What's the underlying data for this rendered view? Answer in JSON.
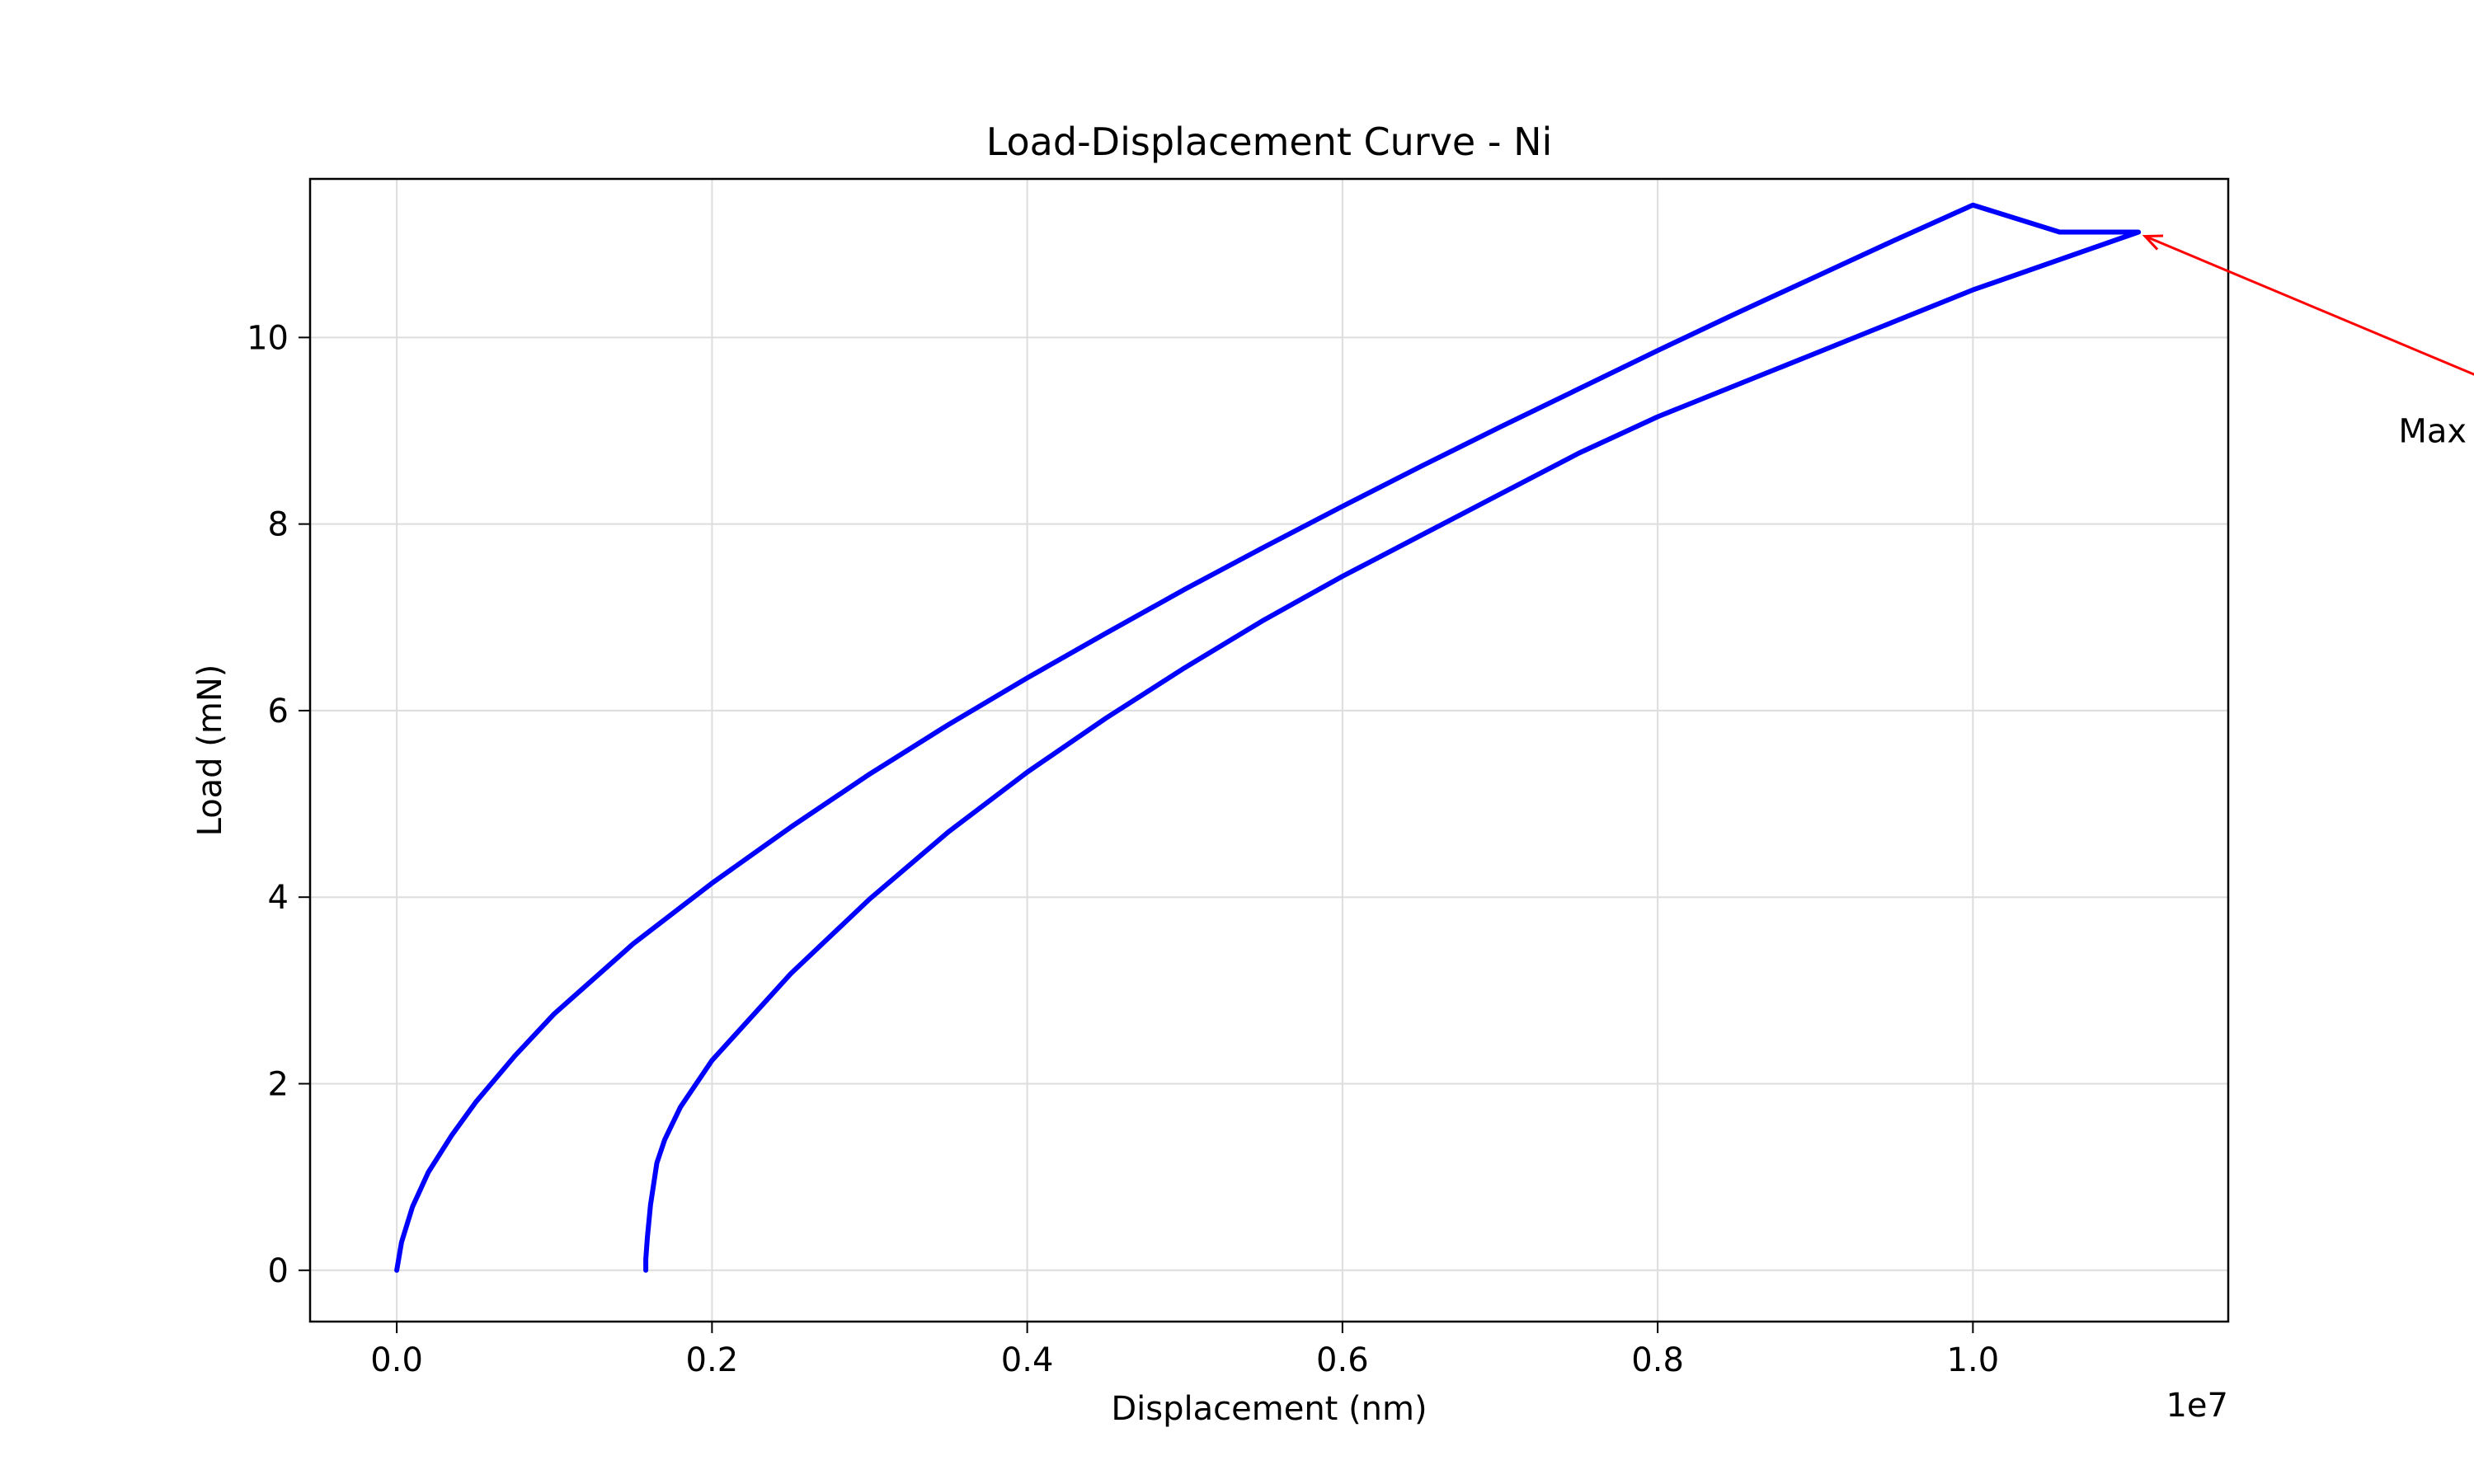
{
  "chart_data": {
    "type": "line",
    "title": "Load-Displacement Curve - Ni",
    "xlabel": "Displacement (nm)",
    "ylabel": "Load (mN)",
    "x_offset_label": "1e7",
    "x_scale_factor": 10000000,
    "xlim": [
      -0.055,
      1.162
    ],
    "ylim": [
      -0.55,
      11.7
    ],
    "x_ticks": [
      0.0,
      0.2,
      0.4,
      0.6,
      0.8,
      1.0
    ],
    "x_tick_labels": [
      "0.0",
      "0.2",
      "0.4",
      "0.6",
      "0.8",
      "1.0"
    ],
    "y_ticks": [
      0,
      2,
      4,
      6,
      8,
      10
    ],
    "y_tick_labels": [
      "0",
      "2",
      "4",
      "6",
      "8",
      "10"
    ],
    "grid": true,
    "series": [
      {
        "color": "#0000ff",
        "x": [
          0.0,
          0.003,
          0.01,
          0.02,
          0.035,
          0.05,
          0.075,
          0.1,
          0.15,
          0.2,
          0.25,
          0.3,
          0.35,
          0.4,
          0.45,
          0.5,
          0.55,
          0.6,
          0.65,
          0.7,
          0.75,
          0.8,
          0.85,
          0.9,
          0.95,
          1.0,
          1.055,
          1.105,
          1.0,
          0.95,
          0.9,
          0.85,
          0.8,
          0.75,
          0.7,
          0.65,
          0.6,
          0.55,
          0.5,
          0.45,
          0.4,
          0.35,
          0.3,
          0.25,
          0.2,
          0.18,
          0.17,
          0.165,
          0.161,
          0.159,
          0.158,
          0.158
        ],
        "y": [
          0.0,
          0.3,
          0.68,
          1.05,
          1.45,
          1.8,
          2.3,
          2.75,
          3.5,
          4.15,
          4.75,
          5.32,
          5.85,
          6.35,
          6.83,
          7.3,
          7.75,
          8.19,
          8.62,
          9.04,
          9.45,
          9.86,
          10.26,
          10.65,
          11.04,
          11.42,
          11.13,
          11.13,
          10.51,
          10.17,
          9.83,
          9.49,
          9.15,
          8.76,
          8.32,
          7.88,
          7.44,
          6.97,
          6.46,
          5.92,
          5.34,
          4.7,
          3.98,
          3.18,
          2.25,
          1.75,
          1.4,
          1.15,
          0.7,
          0.35,
          0.12,
          0.0
        ]
      }
    ],
    "annotation": {
      "text": "Max Load",
      "color": "#ff0000",
      "xy": [
        1.105,
        11.13
      ],
      "xytext": [
        1.27,
        9.0
      ]
    }
  }
}
